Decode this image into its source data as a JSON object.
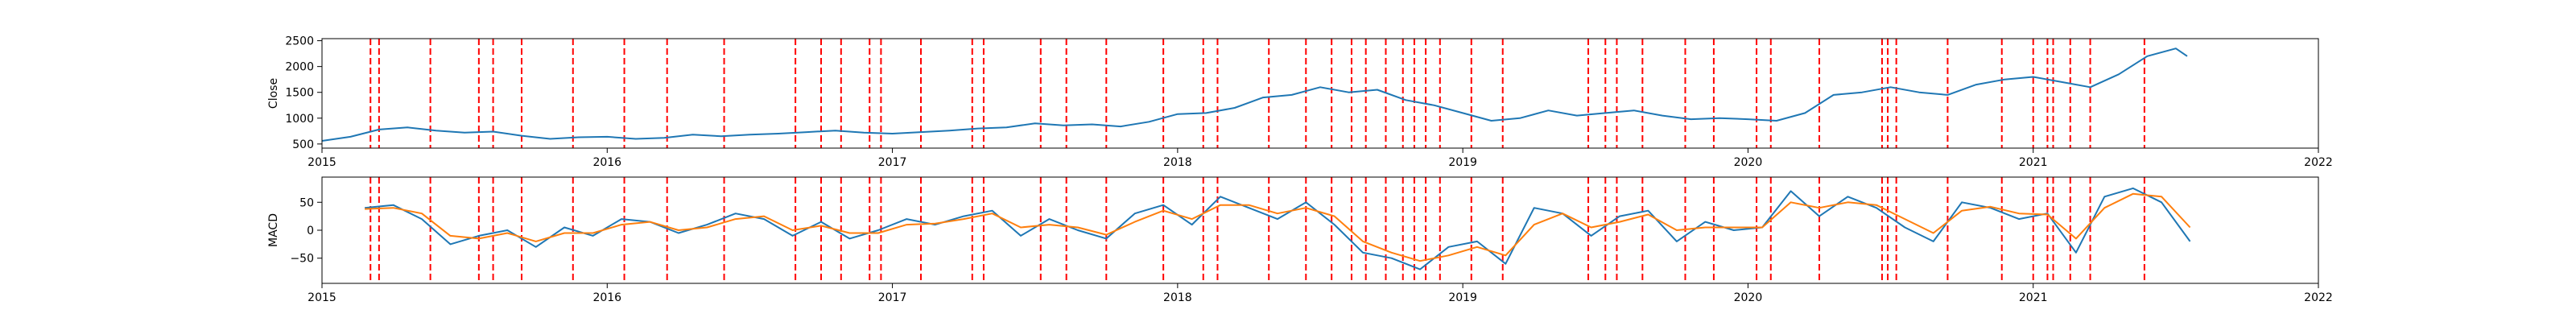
{
  "chart_data": [
    {
      "type": "line",
      "ylabel": "Close",
      "xlabel": "",
      "title": "",
      "xlim": [
        2015.0,
        2022.0
      ],
      "ylim": [
        420,
        2540
      ],
      "x_ticks": [
        2015,
        2016,
        2017,
        2018,
        2019,
        2020,
        2021,
        2022
      ],
      "x_tick_labels": [
        "2015",
        "2016",
        "2017",
        "2018",
        "2019",
        "2020",
        "2021",
        "2022"
      ],
      "y_ticks": [
        500,
        1000,
        1500,
        2000,
        2500
      ],
      "y_tick_labels": [
        "500",
        "1000",
        "1500",
        "2000",
        "2500"
      ],
      "grid": false,
      "series": [
        {
          "color": "#1f77b4",
          "x": [
            2015.0,
            2015.1,
            2015.2,
            2015.3,
            2015.4,
            2015.5,
            2015.6,
            2015.7,
            2015.8,
            2015.9,
            2016.0,
            2016.1,
            2016.2,
            2016.3,
            2016.4,
            2016.5,
            2016.6,
            2016.7,
            2016.8,
            2016.9,
            2017.0,
            2017.1,
            2017.2,
            2017.3,
            2017.4,
            2017.5,
            2017.6,
            2017.7,
            2017.8,
            2017.9,
            2018.0,
            2018.1,
            2018.2,
            2018.3,
            2018.4,
            2018.5,
            2018.6,
            2018.7,
            2018.8,
            2018.9,
            2019.0,
            2019.1,
            2019.2,
            2019.3,
            2019.4,
            2019.5,
            2019.6,
            2019.7,
            2019.8,
            2019.9,
            2020.0,
            2020.1,
            2020.2,
            2020.3,
            2020.4,
            2020.5,
            2020.6,
            2020.7,
            2020.8,
            2020.9,
            2021.0,
            2021.1,
            2021.2,
            2021.3,
            2021.4,
            2021.5,
            2021.54
          ],
          "values": [
            560,
            640,
            780,
            820,
            760,
            720,
            740,
            660,
            600,
            630,
            640,
            600,
            620,
            680,
            650,
            680,
            700,
            730,
            760,
            720,
            700,
            730,
            760,
            800,
            820,
            900,
            860,
            880,
            840,
            930,
            1080,
            1100,
            1200,
            1400,
            1450,
            1600,
            1500,
            1550,
            1350,
            1250,
            1100,
            950,
            1000,
            1150,
            1050,
            1100,
            1150,
            1050,
            980,
            1000,
            980,
            950,
            1100,
            1450,
            1500,
            1600,
            1500,
            1450,
            1650,
            1750,
            1800,
            1700,
            1600,
            1850,
            2200,
            2350,
            2200
          ]
        }
      ]
    },
    {
      "type": "line",
      "ylabel": "MACD",
      "xlabel": "",
      "title": "",
      "xlim": [
        2015.0,
        2022.0
      ],
      "ylim": [
        -95,
        95
      ],
      "x_ticks": [
        2015,
        2016,
        2017,
        2018,
        2019,
        2020,
        2021,
        2022
      ],
      "x_tick_labels": [
        "2015",
        "2016",
        "2017",
        "2018",
        "2019",
        "2020",
        "2021",
        "2022"
      ],
      "y_ticks": [
        -50,
        0,
        50
      ],
      "y_tick_labels": [
        "−50",
        "0",
        "50"
      ],
      "grid": false,
      "series": [
        {
          "color": "#1f77b4",
          "x": [
            2015.15,
            2015.25,
            2015.35,
            2015.45,
            2015.55,
            2015.65,
            2015.75,
            2015.85,
            2015.95,
            2016.05,
            2016.15,
            2016.25,
            2016.35,
            2016.45,
            2016.55,
            2016.65,
            2016.75,
            2016.85,
            2016.95,
            2017.05,
            2017.15,
            2017.25,
            2017.35,
            2017.45,
            2017.55,
            2017.65,
            2017.75,
            2017.85,
            2017.95,
            2018.05,
            2018.15,
            2018.25,
            2018.35,
            2018.45,
            2018.55,
            2018.65,
            2018.75,
            2018.85,
            2018.95,
            2019.05,
            2019.15,
            2019.25,
            2019.35,
            2019.45,
            2019.55,
            2019.65,
            2019.75,
            2019.85,
            2019.95,
            2020.05,
            2020.15,
            2020.25,
            2020.35,
            2020.45,
            2020.55,
            2020.65,
            2020.75,
            2020.85,
            2020.95,
            2021.05,
            2021.15,
            2021.25,
            2021.35,
            2021.45,
            2021.55
          ],
          "values": [
            40,
            45,
            20,
            -25,
            -10,
            0,
            -30,
            5,
            -10,
            20,
            15,
            -5,
            10,
            30,
            20,
            -10,
            15,
            -15,
            0,
            20,
            10,
            25,
            35,
            -10,
            20,
            0,
            -15,
            30,
            45,
            10,
            60,
            40,
            20,
            50,
            10,
            -40,
            -50,
            -70,
            -30,
            -20,
            -60,
            40,
            30,
            -10,
            25,
            35,
            -20,
            15,
            0,
            5,
            70,
            25,
            60,
            40,
            5,
            -20,
            50,
            40,
            20,
            30,
            -40,
            60,
            75,
            50,
            -20
          ]
        },
        {
          "color": "#ff7f0e",
          "x": [
            2015.15,
            2015.25,
            2015.35,
            2015.45,
            2015.55,
            2015.65,
            2015.75,
            2015.85,
            2015.95,
            2016.05,
            2016.15,
            2016.25,
            2016.35,
            2016.45,
            2016.55,
            2016.65,
            2016.75,
            2016.85,
            2016.95,
            2017.05,
            2017.15,
            2017.25,
            2017.35,
            2017.45,
            2017.55,
            2017.65,
            2017.75,
            2017.85,
            2017.95,
            2018.05,
            2018.15,
            2018.25,
            2018.35,
            2018.45,
            2018.55,
            2018.65,
            2018.75,
            2018.85,
            2018.95,
            2019.05,
            2019.15,
            2019.25,
            2019.35,
            2019.45,
            2019.55,
            2019.65,
            2019.75,
            2019.85,
            2019.95,
            2020.05,
            2020.15,
            2020.25,
            2020.35,
            2020.45,
            2020.55,
            2020.65,
            2020.75,
            2020.85,
            2020.95,
            2021.05,
            2021.15,
            2021.25,
            2021.35,
            2021.45,
            2021.55
          ],
          "values": [
            38,
            40,
            30,
            -10,
            -15,
            -5,
            -20,
            -5,
            -5,
            10,
            15,
            0,
            5,
            20,
            25,
            0,
            8,
            -5,
            -5,
            10,
            12,
            20,
            30,
            5,
            10,
            5,
            -8,
            15,
            35,
            20,
            45,
            45,
            30,
            40,
            25,
            -20,
            -40,
            -55,
            -45,
            -30,
            -45,
            10,
            30,
            5,
            15,
            28,
            0,
            5,
            5,
            5,
            50,
            40,
            50,
            45,
            20,
            -5,
            35,
            42,
            30,
            28,
            -15,
            40,
            65,
            60,
            5
          ]
        }
      ]
    }
  ],
  "events": {
    "color": "#ff0000",
    "x": [
      2015.17,
      2015.2,
      2015.38,
      2015.55,
      2015.6,
      2015.7,
      2015.88,
      2016.06,
      2016.21,
      2016.41,
      2016.66,
      2016.75,
      2016.82,
      2016.92,
      2016.96,
      2017.1,
      2017.28,
      2017.32,
      2017.52,
      2017.61,
      2017.75,
      2017.95,
      2018.09,
      2018.14,
      2018.32,
      2018.45,
      2018.54,
      2018.61,
      2018.66,
      2018.73,
      2018.79,
      2018.83,
      2018.87,
      2018.92,
      2019.03,
      2019.14,
      2019.44,
      2019.5,
      2019.54,
      2019.63,
      2019.78,
      2019.88,
      2020.03,
      2020.08,
      2020.25,
      2020.47,
      2020.49,
      2020.52,
      2020.7,
      2020.89,
      2021.0,
      2021.05,
      2021.07,
      2021.13,
      2021.2,
      2021.39
    ]
  }
}
